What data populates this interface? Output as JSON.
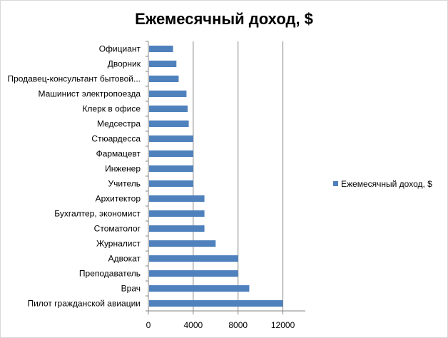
{
  "chart_data": {
    "type": "bar",
    "orientation": "horizontal",
    "title": "Ежемесячный доход, $",
    "xlabel": "",
    "ylabel": "",
    "categories": [
      "Официант",
      "Дворник",
      "Продавец-консультант бытовой...",
      "Машинист электропоезда",
      "Клерк в офисе",
      "Медсестра",
      "Стюардесса",
      "Фармацевт",
      "Инженер",
      "Учитель",
      "Архитектор",
      "Бухгалтер, экономист",
      "Стоматолог",
      "Журналист",
      "Адвокат",
      "Преподаватель",
      "Врач",
      "Пилот гражданской авиации"
    ],
    "series": [
      {
        "name": "Ежемесячный доход, $",
        "color": "#4f81bd",
        "values": [
          2200,
          2500,
          2700,
          3400,
          3500,
          3600,
          4000,
          4000,
          4000,
          4000,
          5000,
          5000,
          5000,
          6000,
          8000,
          8000,
          9000,
          12000
        ]
      }
    ],
    "xlim": [
      0,
      14000
    ],
    "xticks": [
      "0",
      "4000",
      "8000",
      "12000"
    ],
    "tick_values": [
      0,
      4000,
      8000,
      12000
    ],
    "grid": "vertical",
    "legend_position": "right"
  }
}
